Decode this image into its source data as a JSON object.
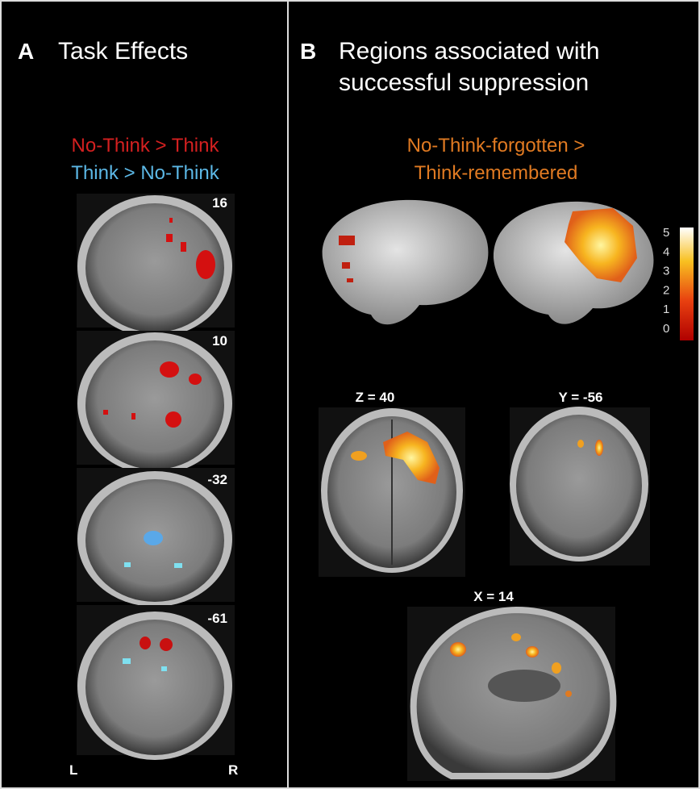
{
  "panel_a": {
    "letter": "A",
    "title": "Task Effects",
    "legend": [
      {
        "text": "No-Think > Think",
        "color": "#d42020"
      },
      {
        "text": "Think > No-Think",
        "color": "#5cb8e6"
      }
    ],
    "slices": [
      "16",
      "10",
      "-32",
      "-61"
    ],
    "left": "L",
    "right": "R"
  },
  "panel_b": {
    "letter": "B",
    "title_lines": [
      "Regions associated with",
      "successful suppression"
    ],
    "contrast_lines": [
      "No-Think-forgotten >",
      "Think-remembered"
    ],
    "contrast_color": "#e07a22",
    "colorbar_ticks": [
      5,
      4,
      3,
      2,
      1,
      0
    ],
    "slices": [
      "Z = 40",
      "Y = -56",
      "X = 14"
    ]
  }
}
